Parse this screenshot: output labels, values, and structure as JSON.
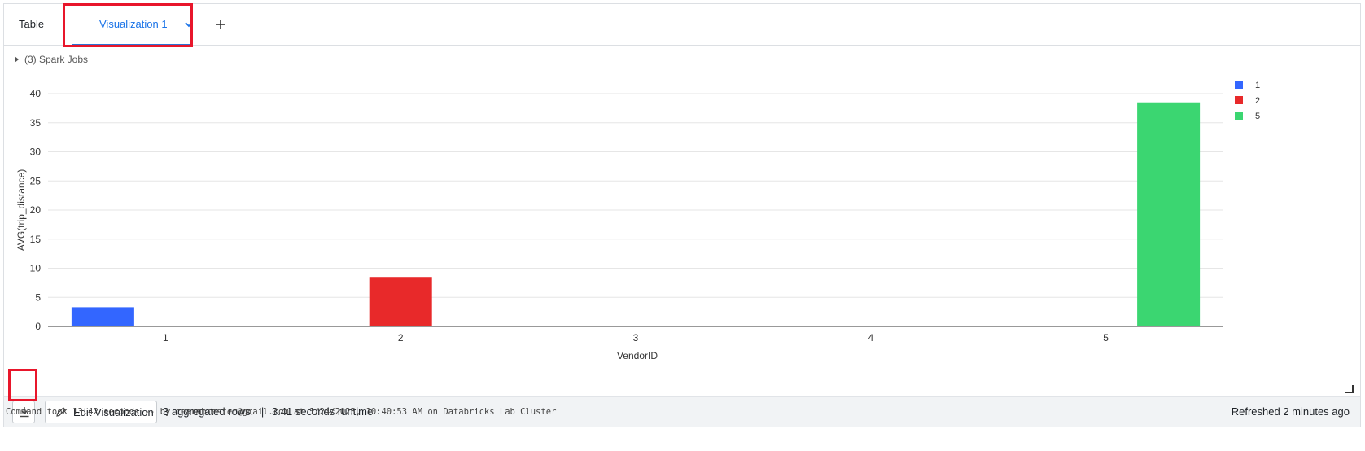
{
  "tabs": {
    "table_label": "Table",
    "viz_label": "Visualization 1"
  },
  "spark_jobs": "(3) Spark Jobs",
  "chart_data": {
    "type": "bar",
    "categories": [
      "1",
      "2",
      "3",
      "4",
      "5"
    ],
    "series": [
      {
        "name": "1",
        "color": "#3366ff",
        "x": "1",
        "value": 3.3
      },
      {
        "name": "2",
        "color": "#e8292a",
        "x": "2",
        "value": 8.5
      },
      {
        "name": "5",
        "color": "#3bd671",
        "x": "5",
        "value": 38.5
      }
    ],
    "xlabel": "VendorID",
    "ylabel": "AVG(trip_distance)",
    "ylim": [
      0,
      40
    ],
    "yticks": [
      0,
      5,
      10,
      15,
      20,
      25,
      30,
      35,
      40
    ],
    "grid": true,
    "legend_position": "top-right"
  },
  "footer": {
    "status": "3 aggregated rows.",
    "sep": "|",
    "runtime": "3.41 seconds runtime",
    "edit_label": "Edit Visualization",
    "refreshed": "Refreshed 2 minutes ago"
  },
  "command_note": "Command took 13.42 seconds -- by cearmbrester@gmail.com at 1/24/2023, 10:40:53 AM on Databricks Lab Cluster",
  "icons": {
    "download": "download-icon",
    "edit": "pencil-icon",
    "add": "plus-icon",
    "dropdown": "chevron-down-icon"
  }
}
